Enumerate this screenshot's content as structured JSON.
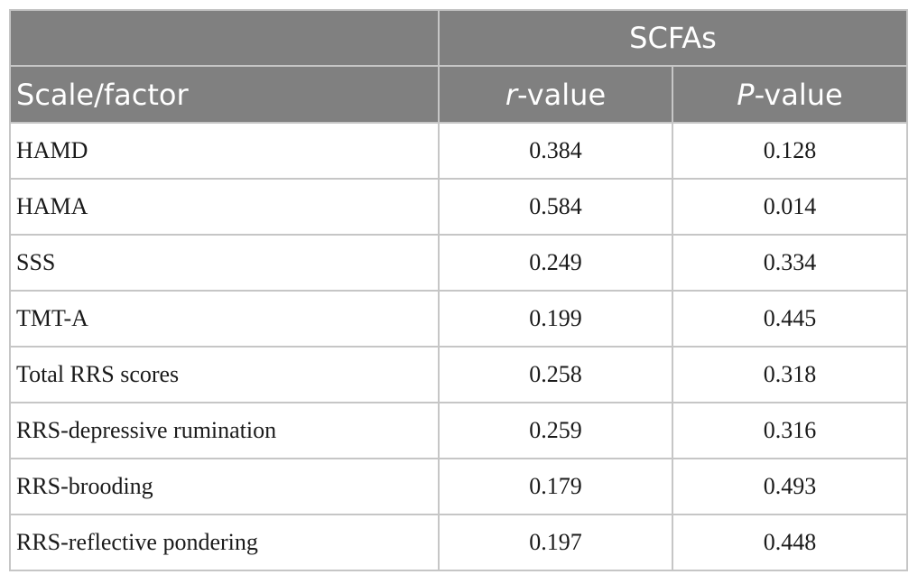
{
  "table": {
    "group_header": "SCFAs",
    "columns": {
      "scale": "Scale/factor",
      "r_italic": "r",
      "r_suffix": "-value",
      "p_italic": "P",
      "p_suffix": "-value"
    },
    "rows": [
      {
        "label": "HAMD",
        "r": "0.384",
        "p": "0.128"
      },
      {
        "label": "HAMA",
        "r": "0.584",
        "p": "0.014"
      },
      {
        "label": "SSS",
        "r": "0.249",
        "p": "0.334"
      },
      {
        "label": "TMT-A",
        "r": "0.199",
        "p": "0.445"
      },
      {
        "label": "Total RRS scores",
        "r": "0.258",
        "p": "0.318"
      },
      {
        "label": "RRS-depressive rumination",
        "r": "0.259",
        "p": "0.316"
      },
      {
        "label": "RRS-brooding",
        "r": "0.179",
        "p": "0.493"
      },
      {
        "label": "RRS-reflective pondering",
        "r": "0.197",
        "p": "0.448"
      }
    ]
  }
}
